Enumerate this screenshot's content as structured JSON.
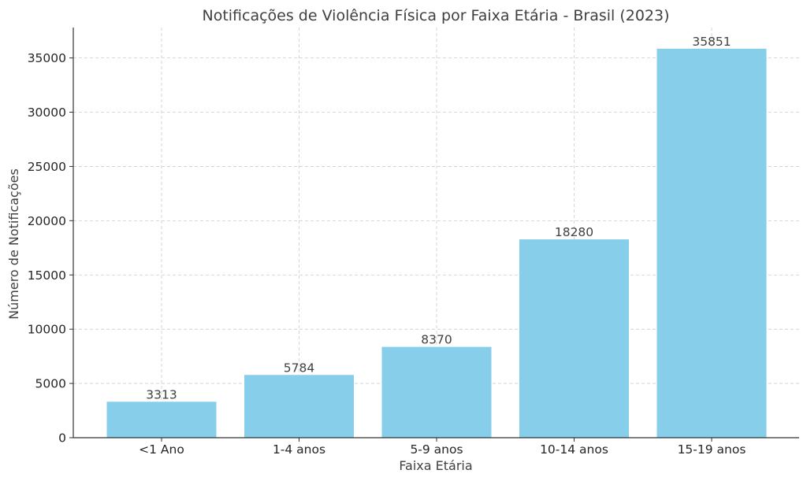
{
  "chart_data": {
    "type": "bar",
    "title": "Notificações de Violência Física por Faixa Etária - Brasil (2023)",
    "xlabel": "Faixa Etária",
    "ylabel": "Número de Notificações",
    "categories": [
      "<1 Ano",
      "1-4 anos",
      "5-9 anos",
      "10-14 anos",
      "15-19 anos"
    ],
    "values": [
      3313,
      5784,
      8370,
      18280,
      35851
    ],
    "data_labels": [
      "3313",
      "5784",
      "8370",
      "18280",
      "35851"
    ],
    "ylim": [
      0,
      37800
    ],
    "yticks": [
      0,
      5000,
      10000,
      15000,
      20000,
      25000,
      30000,
      35000
    ],
    "ytick_labels": [
      "0",
      "5000",
      "10000",
      "15000",
      "20000",
      "25000",
      "30000",
      "35000"
    ],
    "bar_color": "#87ceeb",
    "grid": true,
    "legend": "none"
  }
}
